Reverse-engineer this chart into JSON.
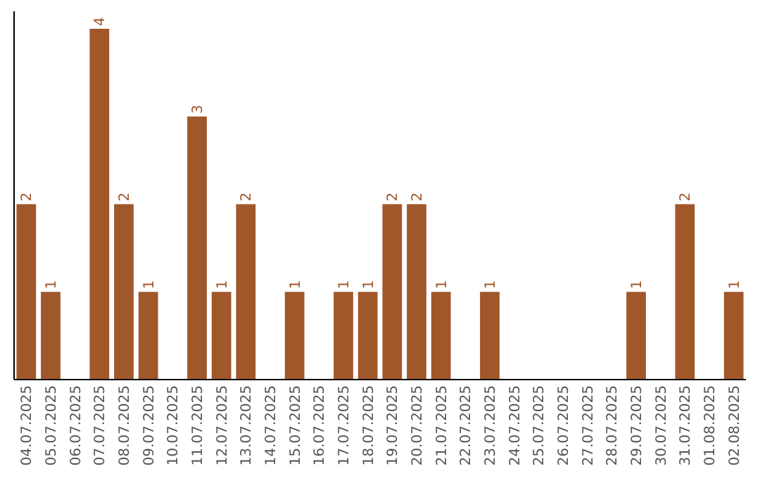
{
  "chart_data": {
    "type": "bar",
    "categories": [
      "04.07.2025",
      "05.07.2025",
      "06.07.2025",
      "07.07.2025",
      "08.07.2025",
      "09.07.2025",
      "10.07.2025",
      "11.07.2025",
      "12.07.2025",
      "13.07.2025",
      "14.07.2025",
      "15.07.2025",
      "16.07.2025",
      "17.07.2025",
      "18.07.2025",
      "19.07.2025",
      "20.07.2025",
      "21.07.2025",
      "22.07.2025",
      "23.07.2025",
      "24.07.2025",
      "25.07.2025",
      "26.07.2025",
      "27.07.2025",
      "28.07.2025",
      "29.07.2025",
      "30.07.2025",
      "31.07.2025",
      "01.08.2025",
      "02.08.2025"
    ],
    "values": [
      2,
      1,
      0,
      4,
      2,
      1,
      0,
      3,
      1,
      2,
      0,
      1,
      0,
      1,
      1,
      2,
      2,
      1,
      0,
      1,
      0,
      0,
      0,
      0,
      0,
      1,
      0,
      2,
      0,
      1
    ],
    "value_labels": [
      "2",
      "1",
      null,
      "4",
      "2",
      "1",
      null,
      "3",
      "1",
      "2",
      null,
      "1",
      null,
      "1",
      "1",
      "2",
      "2",
      "1",
      null,
      "1",
      null,
      null,
      null,
      null,
      null,
      "1",
      null,
      "2",
      null,
      "1"
    ],
    "color": "#a0572a",
    "tick_labels": "x"
  }
}
